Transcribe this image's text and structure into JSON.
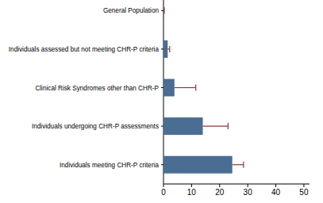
{
  "chart_data": {
    "type": "bar",
    "orientation": "horizontal",
    "categories": [
      "General Population",
      "Individuals assessed but not meeting CHR-P criteria",
      "Clinical Risk Syndromes other than CHR-P",
      "Individuals undergoing CHR-P assessments",
      "Individuals meeting CHR-P criteria"
    ],
    "values": [
      0.1,
      1.5,
      3.9,
      14.0,
      24.5
    ],
    "errors": [
      0.2,
      0.7,
      7.6,
      9.0,
      4.0
    ],
    "color": "#4a6d93",
    "xlim": [
      0,
      52
    ],
    "xticks": [
      0,
      10,
      20,
      30,
      40,
      50
    ],
    "grid": false
  }
}
